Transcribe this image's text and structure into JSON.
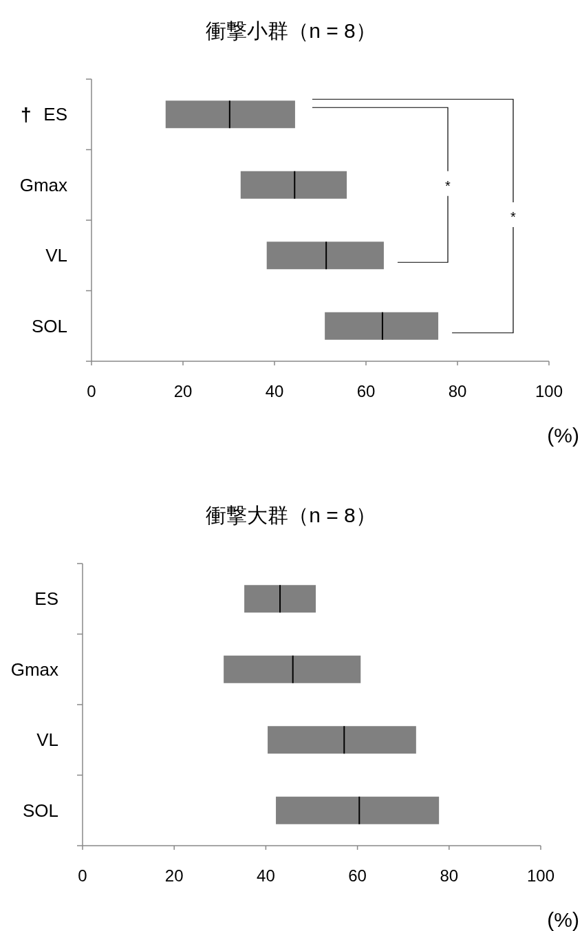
{
  "chart_data": [
    {
      "type": "box",
      "orientation": "horizontal",
      "title": "衝撃小群（n = 8）",
      "xlabel": "(%)",
      "categories": [
        "ES",
        "Gmax",
        "VL",
        "SOL"
      ],
      "boxes": [
        {
          "low": 16.2,
          "q1": 16.2,
          "median": 30.2,
          "q3": 44.5,
          "high": 44.5
        },
        {
          "low": 32.6,
          "q1": 32.6,
          "median": 44.4,
          "q3": 55.8,
          "high": 55.8
        },
        {
          "low": 38.3,
          "q1": 38.3,
          "median": 51.3,
          "q3": 63.9,
          "high": 63.9
        },
        {
          "low": 51.0,
          "q1": 51.0,
          "median": 63.6,
          "q3": 75.8,
          "high": 75.8
        }
      ],
      "color": "#808080",
      "xlim": [
        0,
        100
      ],
      "xticks": [
        0,
        20,
        40,
        60,
        80,
        100
      ],
      "grid": false,
      "annotations": [
        "†",
        "*",
        "*"
      ]
    },
    {
      "type": "box",
      "orientation": "horizontal",
      "title": "衝撃大群（n = 8）",
      "xlabel": "(%)",
      "categories": [
        "ES",
        "Gmax",
        "VL",
        "SOL"
      ],
      "boxes": [
        {
          "low": 35.3,
          "q1": 35.3,
          "median": 43.1,
          "q3": 50.9,
          "high": 50.9
        },
        {
          "low": 30.8,
          "q1": 30.8,
          "median": 45.9,
          "q3": 60.7,
          "high": 60.7
        },
        {
          "low": 40.4,
          "q1": 40.4,
          "median": 57.1,
          "q3": 72.8,
          "high": 72.8
        },
        {
          "low": 42.2,
          "q1": 42.2,
          "median": 60.4,
          "q3": 77.8,
          "high": 77.8
        }
      ],
      "color": "#808080",
      "xlim": [
        0,
        100
      ],
      "xticks": [
        0,
        20,
        40,
        60,
        80,
        100
      ],
      "grid": false
    }
  ]
}
